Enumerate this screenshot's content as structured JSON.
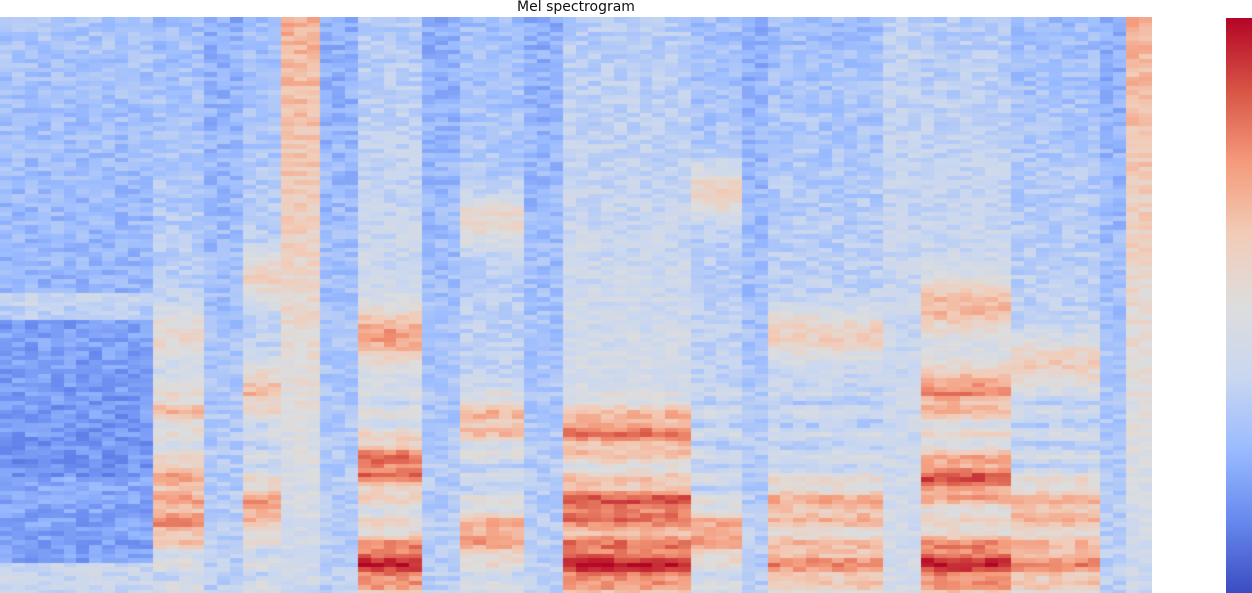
{
  "chart_data": {
    "type": "heatmap",
    "title": "Mel spectrogram",
    "colormap": "coolwarm",
    "colormap_stops": [
      "#3b4cc0",
      "#6788ee",
      "#9abbff",
      "#c9d7f0",
      "#dddddd",
      "#f2cbb7",
      "#f49a7b",
      "#d75445",
      "#b40426"
    ],
    "axes_visible": false,
    "colorbar": {
      "visible": true,
      "tick_labels_visible": false
    },
    "value_range": [
      0,
      1
    ],
    "n_time_frames": 90,
    "n_mel_bins": 128,
    "column_profiles": [
      {
        "frames": [
          0,
          11
        ],
        "kind": "silence"
      },
      {
        "frames": [
          12,
          15
        ],
        "kind": "vowel",
        "formants": [
          0.12,
          0.2,
          0.32,
          0.45
        ]
      },
      {
        "frames": [
          16,
          18
        ],
        "kind": "quiet"
      },
      {
        "frames": [
          19,
          21
        ],
        "kind": "vowel",
        "formants": [
          0.15,
          0.35,
          0.55
        ]
      },
      {
        "frames": [
          22,
          24
        ],
        "kind": "bright-high"
      },
      {
        "frames": [
          25,
          27
        ],
        "kind": "quiet"
      },
      {
        "frames": [
          28,
          32
        ],
        "kind": "vowel-strong",
        "formants": [
          0.05,
          0.22,
          0.45
        ]
      },
      {
        "frames": [
          33,
          35
        ],
        "kind": "quiet"
      },
      {
        "frames": [
          36,
          40
        ],
        "kind": "vowel",
        "formants": [
          0.1,
          0.3,
          0.65
        ]
      },
      {
        "frames": [
          41,
          43
        ],
        "kind": "quiet"
      },
      {
        "frames": [
          44,
          53
        ],
        "kind": "vowel-strong",
        "formants": [
          0.05,
          0.15,
          0.28
        ]
      },
      {
        "frames": [
          54,
          57
        ],
        "kind": "vowel",
        "formants": [
          0.1,
          0.7
        ]
      },
      {
        "frames": [
          58,
          59
        ],
        "kind": "quiet"
      },
      {
        "frames": [
          60,
          68
        ],
        "kind": "vowel",
        "formants": [
          0.05,
          0.15,
          0.45
        ]
      },
      {
        "frames": [
          69,
          71
        ],
        "kind": "mid"
      },
      {
        "frames": [
          72,
          78
        ],
        "kind": "vowel-strong",
        "formants": [
          0.05,
          0.2,
          0.35,
          0.5
        ]
      },
      {
        "frames": [
          79,
          85
        ],
        "kind": "vowel",
        "formants": [
          0.05,
          0.15,
          0.4
        ]
      },
      {
        "frames": [
          86,
          87
        ],
        "kind": "quiet"
      },
      {
        "frames": [
          88,
          89
        ],
        "kind": "bright-high"
      }
    ]
  }
}
